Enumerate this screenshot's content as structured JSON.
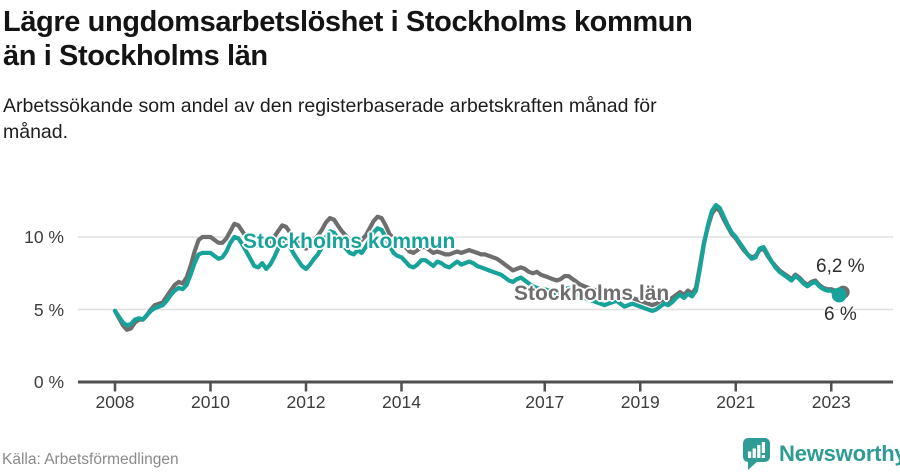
{
  "header": {
    "title_line1": "Lägre ungdomsarbetslöshet i Stockholms kommun",
    "title_line2": "än i Stockholms län",
    "subtitle": "Arbetssökande som andel av den registerbaserade arbetskraften månad för månad."
  },
  "chart_data": {
    "type": "line",
    "unit": "%",
    "grid": "horizontal",
    "ylim": [
      0,
      12.5
    ],
    "x_range": [
      2008,
      2023.25
    ],
    "x_ticks": [
      {
        "year": 2008,
        "label": "2008"
      },
      {
        "year": 2010,
        "label": "2010"
      },
      {
        "year": 2012,
        "label": "2012"
      },
      {
        "year": 2014,
        "label": "2014"
      },
      {
        "year": 2017,
        "label": "2017"
      },
      {
        "year": 2019,
        "label": "2019"
      },
      {
        "year": 2021,
        "label": "2021"
      },
      {
        "year": 2023,
        "label": "2023"
      }
    ],
    "y_ticks": [
      {
        "value": 0,
        "label": "0 %"
      },
      {
        "value": 5,
        "label": "5 %"
      },
      {
        "value": 10,
        "label": "10 %"
      }
    ],
    "axis_color": "#4f4f4f",
    "grid_color": "#e0e0e0",
    "series": [
      {
        "name": "Stockholms län",
        "color": "#6e6e6e",
        "end_label": "6,2 %",
        "last_value": 6.2,
        "dot_radius": 6.5,
        "start_year": 2008,
        "points_per_year": 12,
        "values": [
          4.9,
          4.4,
          3.9,
          3.6,
          3.7,
          4.1,
          4.3,
          4.3,
          4.6,
          5.0,
          5.3,
          5.4,
          5.5,
          5.9,
          6.3,
          6.7,
          6.9,
          6.8,
          7.2,
          8.0,
          9.0,
          9.8,
          10.0,
          10.0,
          10.0,
          9.8,
          9.6,
          9.6,
          9.9,
          10.4,
          10.9,
          10.8,
          10.4,
          10.0,
          9.7,
          9.5,
          9.4,
          9.7,
          9.4,
          9.6,
          10.0,
          10.4,
          10.8,
          10.7,
          10.3,
          9.9,
          9.6,
          9.3,
          9.2,
          9.5,
          9.8,
          10.1,
          10.5,
          11.0,
          11.3,
          11.2,
          10.8,
          10.4,
          10.1,
          9.8,
          9.7,
          10.0,
          9.8,
          10.1,
          10.6,
          11.1,
          11.4,
          11.3,
          10.8,
          10.2,
          9.9,
          9.7,
          9.6,
          9.3,
          9.0,
          8.9,
          9.1,
          9.3,
          9.3,
          9.1,
          8.9,
          9.0,
          8.9,
          8.8,
          8.8,
          8.9,
          9.0,
          8.9,
          9.0,
          9.1,
          9.0,
          8.9,
          8.8,
          8.8,
          8.7,
          8.6,
          8.5,
          8.3,
          8.1,
          7.9,
          7.7,
          7.8,
          7.9,
          7.8,
          7.6,
          7.5,
          7.6,
          7.4,
          7.3,
          7.2,
          7.1,
          7.0,
          7.1,
          7.3,
          7.3,
          7.1,
          6.9,
          6.7,
          6.6,
          6.5,
          6.4,
          6.3,
          6.2,
          6.1,
          6.2,
          6.3,
          6.3,
          6.1,
          5.9,
          5.8,
          5.8,
          5.7,
          5.6,
          5.5,
          5.4,
          5.3,
          5.4,
          5.6,
          5.7,
          5.6,
          5.8,
          6.0,
          6.2,
          6.0,
          6.3,
          6.1,
          6.5,
          8.0,
          9.6,
          10.7,
          11.6,
          12.0,
          11.8,
          11.2,
          10.7,
          10.2,
          9.9,
          9.5,
          9.1,
          8.8,
          8.6,
          8.7,
          9.1,
          9.2,
          8.7,
          8.3,
          8.0,
          7.7,
          7.5,
          7.3,
          7.1,
          7.4,
          7.2,
          6.9,
          6.7,
          6.9,
          7.0,
          6.7,
          6.5,
          6.4,
          6.4,
          6.3,
          6.2,
          6.2
        ]
      },
      {
        "name": "Stockholms kommun",
        "color": "#17a29a",
        "end_label": "6 %",
        "last_value": 6.0,
        "dot_radius": 7.5,
        "start_year": 2008,
        "points_per_year": 12,
        "values": [
          4.9,
          4.5,
          4.1,
          3.9,
          4.0,
          4.3,
          4.4,
          4.3,
          4.6,
          4.9,
          5.1,
          5.2,
          5.3,
          5.6,
          6.0,
          6.3,
          6.5,
          6.4,
          6.7,
          7.4,
          8.2,
          8.8,
          8.9,
          8.9,
          8.9,
          8.7,
          8.5,
          8.6,
          9.0,
          9.6,
          10.0,
          9.9,
          9.5,
          9.0,
          8.5,
          8.0,
          7.9,
          8.2,
          7.8,
          8.1,
          8.6,
          9.2,
          9.8,
          9.7,
          9.3,
          8.8,
          8.4,
          8.0,
          7.8,
          8.1,
          8.5,
          8.8,
          9.3,
          10.0,
          10.4,
          10.3,
          9.9,
          9.5,
          9.2,
          8.9,
          8.8,
          9.1,
          8.9,
          9.3,
          9.8,
          10.3,
          10.6,
          10.5,
          10.0,
          9.4,
          8.9,
          8.7,
          8.6,
          8.3,
          8.0,
          7.9,
          8.1,
          8.4,
          8.4,
          8.2,
          8.0,
          8.3,
          8.2,
          8.0,
          7.9,
          8.1,
          8.3,
          8.1,
          8.2,
          8.3,
          8.2,
          8.0,
          7.9,
          7.8,
          7.7,
          7.6,
          7.5,
          7.4,
          7.2,
          7.0,
          6.9,
          7.1,
          7.2,
          7.0,
          6.8,
          6.6,
          6.5,
          6.4,
          6.4,
          6.3,
          6.2,
          6.1,
          6.2,
          6.4,
          6.5,
          6.3,
          6.1,
          5.9,
          5.8,
          5.7,
          5.6,
          5.5,
          5.4,
          5.3,
          5.4,
          5.5,
          5.6,
          5.4,
          5.2,
          5.3,
          5.4,
          5.3,
          5.2,
          5.1,
          5.0,
          4.9,
          5.0,
          5.2,
          5.4,
          5.3,
          5.5,
          5.8,
          6.0,
          5.8,
          6.1,
          5.9,
          6.3,
          7.8,
          9.5,
          10.8,
          11.8,
          12.2,
          12.0,
          11.4,
          10.8,
          10.3,
          10.0,
          9.6,
          9.2,
          8.8,
          8.5,
          8.6,
          9.2,
          9.3,
          8.8,
          8.3,
          7.9,
          7.6,
          7.4,
          7.2,
          7.0,
          7.3,
          7.1,
          6.8,
          6.6,
          6.8,
          6.9,
          6.6,
          6.4,
          6.3,
          6.3,
          6.1,
          6.0
        ]
      }
    ]
  },
  "footer": {
    "source": "Källa: Arbetsförmedlingen",
    "brand": "Newsworthy",
    "brand_color": "#2e9c95"
  }
}
